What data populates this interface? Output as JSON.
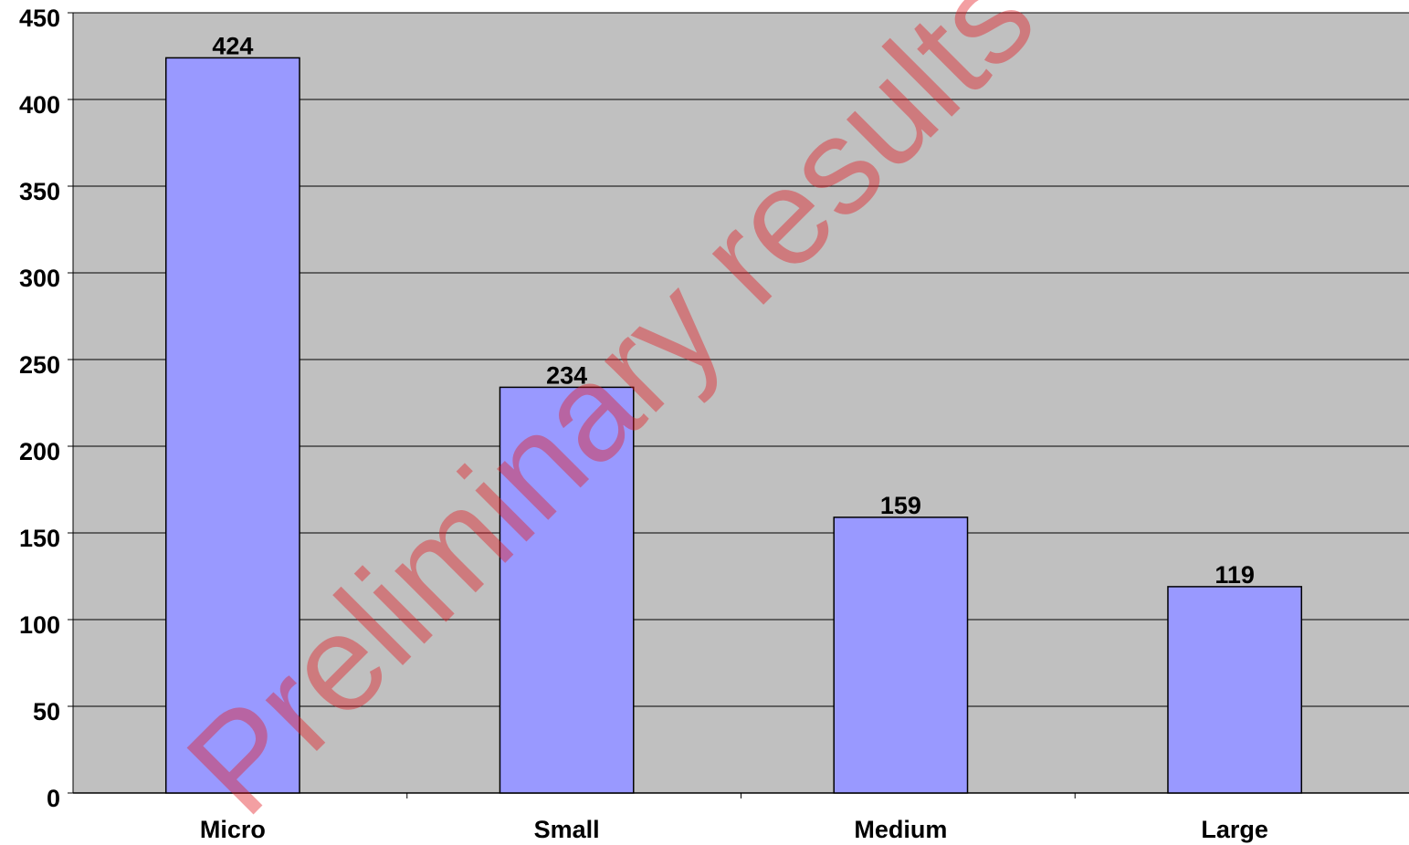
{
  "chart_data": {
    "type": "bar",
    "categories": [
      "Micro",
      "Small",
      "Medium",
      "Large"
    ],
    "values": [
      424,
      234,
      159,
      119
    ],
    "title": "",
    "xlabel": "",
    "ylabel": "",
    "ylim": [
      0,
      450
    ],
    "yticks": [
      0,
      50,
      100,
      150,
      200,
      250,
      300,
      350,
      400,
      450
    ],
    "grid": true,
    "legend": "none",
    "colors": {
      "plot_background": "#c0c0c0",
      "bar_fill": "#9999ff",
      "bar_stroke": "#000000",
      "gridline": "#000000"
    }
  },
  "watermark": {
    "text": "Preliminary results",
    "color": "#e31c23"
  }
}
